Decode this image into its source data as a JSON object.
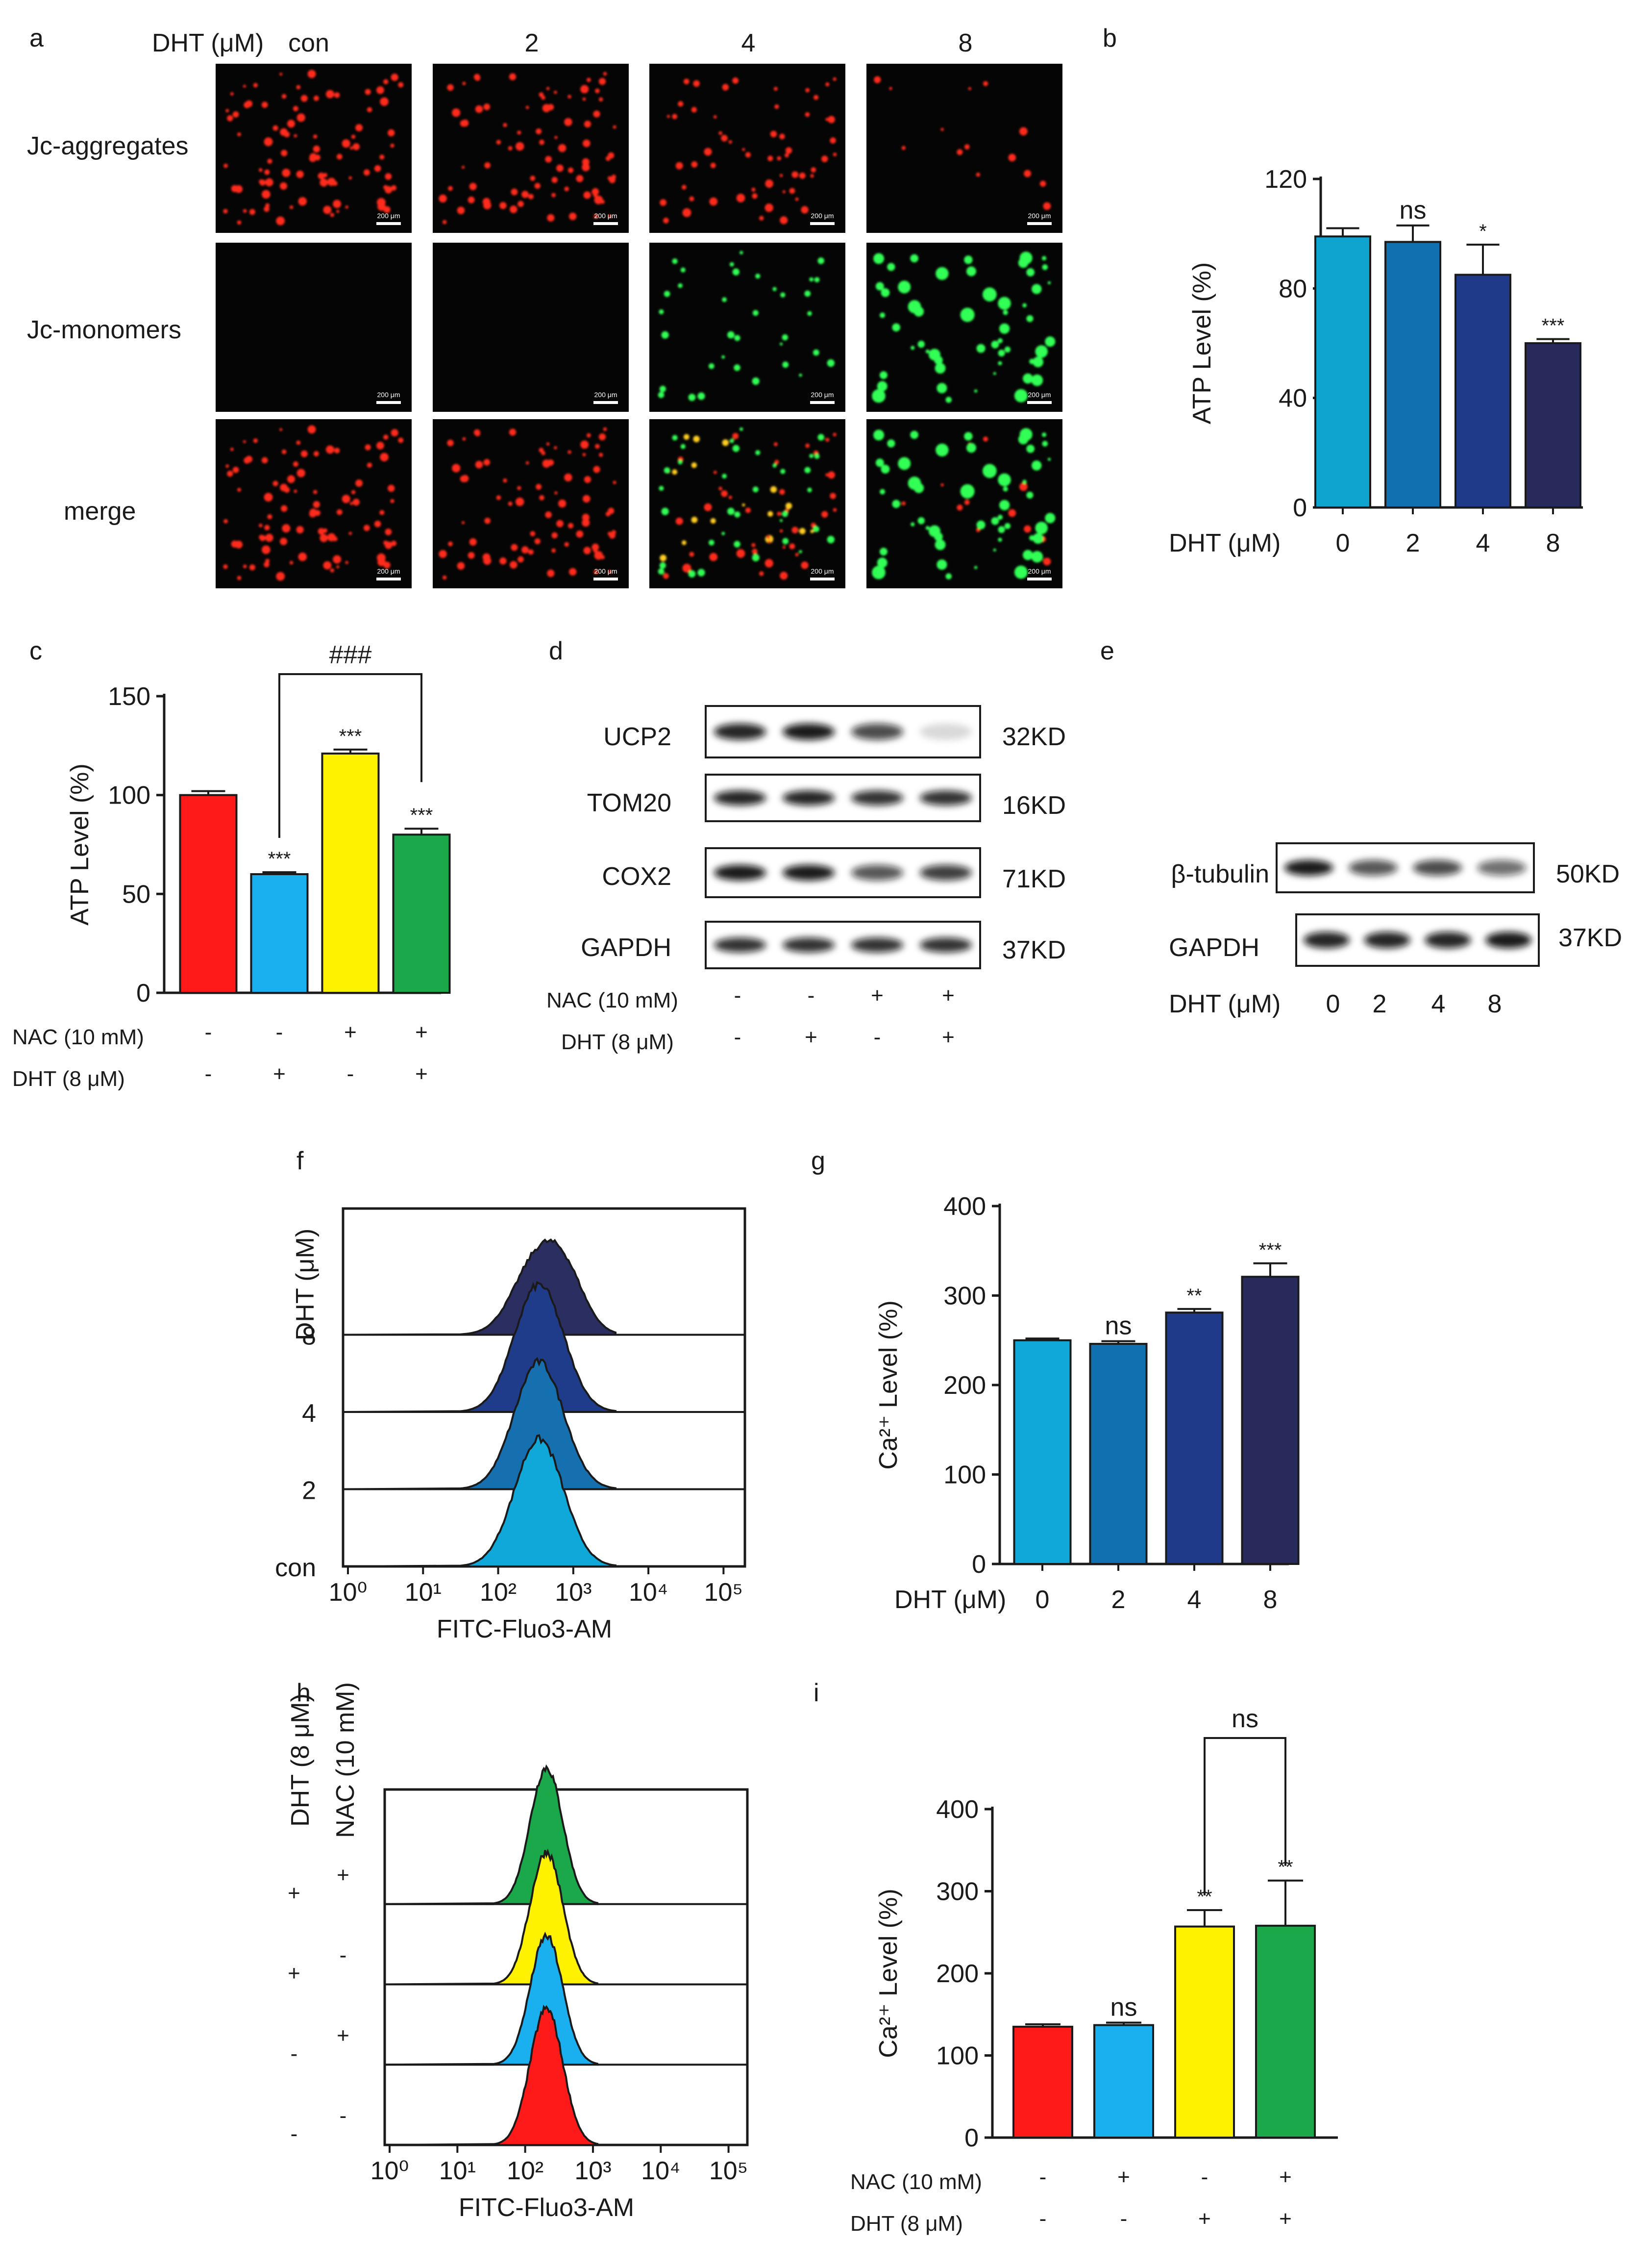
{
  "panel_letters": [
    "a",
    "b",
    "c",
    "d",
    "e",
    "f",
    "g",
    "h",
    "i"
  ],
  "panel_a": {
    "header_label": "DHT (μM)",
    "columns": [
      "con",
      "2",
      "4",
      "8"
    ],
    "rows": [
      "Jc-aggregates",
      "Jc-monomers",
      "merge"
    ],
    "scale_bar": "200 μm",
    "colors": {
      "aggregates": "#ff2a1a",
      "monomers": "#33ff55",
      "merge_overlap": "#ffcc22"
    }
  },
  "panel_d": {
    "bands": [
      {
        "name": "UCP2",
        "size": "32KD"
      },
      {
        "name": "TOM20",
        "size": "16KD"
      },
      {
        "name": "COX2",
        "size": "71KD"
      },
      {
        "name": "GAPDH",
        "size": "37KD"
      }
    ],
    "row_labels": [
      "NAC (10 mM)",
      "DHT  (8 μM)"
    ],
    "nac": [
      "-",
      "-",
      "+",
      "+"
    ],
    "dht": [
      "-",
      "+",
      "-",
      "+"
    ]
  },
  "panel_e": {
    "bands": [
      {
        "name": "β-tubulin",
        "size": "50KD"
      },
      {
        "name": "GAPDH",
        "size": "37KD"
      }
    ],
    "row_label": "DHT (μM)",
    "doses": [
      "0",
      "2",
      "4",
      "8"
    ]
  },
  "chart_data": [
    {
      "panel": "b",
      "type": "bar",
      "categories": [
        "0",
        "2",
        "4",
        "8"
      ],
      "values": [
        99,
        97,
        85,
        60
      ],
      "errors": [
        3,
        6,
        11,
        1.5
      ],
      "significance": [
        "",
        "ns",
        "*",
        "***"
      ],
      "ylabel": "ATP Level (%)",
      "xlabel": "DHT (μM)",
      "ylim": [
        0,
        120
      ],
      "yticks": [
        0,
        40,
        80,
        120
      ],
      "colors": [
        "#0fa3cf",
        "#1170b0",
        "#203a8a",
        "#272a5a"
      ]
    },
    {
      "panel": "c",
      "type": "bar",
      "categories": [
        "1",
        "2",
        "3",
        "4"
      ],
      "values": [
        100,
        60,
        121,
        80
      ],
      "errors": [
        2,
        1,
        2,
        3
      ],
      "significance": [
        "",
        "***",
        "***",
        "***"
      ],
      "bracket": {
        "from": 1,
        "to": 3,
        "label": "###"
      },
      "ylabel": "ATP Level (%)",
      "ylim": [
        0,
        150
      ],
      "yticks": [
        0,
        50,
        100,
        150
      ],
      "row_labels": [
        "NAC (10 mM)",
        "DHT  (8 μM)"
      ],
      "nac": [
        "-",
        "-",
        "+",
        "+"
      ],
      "dht": [
        "-",
        "+",
        "-",
        "+"
      ],
      "colors": [
        "#ff1a1a",
        "#1ab0f0",
        "#fff200",
        "#1aa84a"
      ]
    },
    {
      "panel": "f",
      "type": "area",
      "xlabel": "FITC-Fluo3-AM",
      "xscale": "log",
      "xticks": [
        "10⁰",
        "10¹",
        "10²",
        "10³",
        "10⁴",
        "10⁵"
      ],
      "side_label": "DHT  (μM)",
      "traces": [
        {
          "label": "con",
          "color": "#10a8d8"
        },
        {
          "label": "2",
          "color": "#1670b0"
        },
        {
          "label": "4",
          "color": "#1f3c8a"
        },
        {
          "label": "8",
          "color": "#2a2e60"
        }
      ]
    },
    {
      "panel": "g",
      "type": "bar",
      "categories": [
        "0",
        "2",
        "4",
        "8"
      ],
      "values": [
        250,
        246,
        281,
        321
      ],
      "errors": [
        2,
        3,
        4,
        15
      ],
      "significance": [
        "",
        "ns",
        "**",
        "***"
      ],
      "ylabel": "Ca²⁺ Level (%)",
      "xlabel": "DHT (μM)",
      "ylim": [
        0,
        400
      ],
      "yticks": [
        0,
        100,
        200,
        300,
        400
      ],
      "colors": [
        "#10a8d8",
        "#1170b0",
        "#203a8a",
        "#272a5a"
      ]
    },
    {
      "panel": "h",
      "type": "area",
      "xlabel": "FITC-Fluo3-AM",
      "xscale": "log",
      "xticks": [
        "10⁰",
        "10¹",
        "10²",
        "10³",
        "10⁴",
        "10⁵"
      ],
      "side_labels": [
        "DHT  (8 μM)",
        "NAC (10 mM)"
      ],
      "traces": [
        {
          "dht": "-",
          "nac": "-",
          "color": "#ff1a1a"
        },
        {
          "dht": "-",
          "nac": "+",
          "color": "#1ab0f0"
        },
        {
          "dht": "+",
          "nac": "-",
          "color": "#fff200"
        },
        {
          "dht": "+",
          "nac": "+",
          "color": "#1aa84a"
        }
      ]
    },
    {
      "panel": "i",
      "type": "bar",
      "categories": [
        "1",
        "2",
        "3",
        "4"
      ],
      "values": [
        135,
        137,
        257,
        258
      ],
      "errors": [
        3,
        3,
        20,
        55
      ],
      "significance": [
        "",
        "ns",
        "**",
        "**"
      ],
      "bracket": {
        "from": 2,
        "to": 3,
        "label": "ns"
      },
      "ylabel": "Ca²⁺ Level (%)",
      "ylim": [
        0,
        400
      ],
      "yticks": [
        0,
        100,
        200,
        300,
        400
      ],
      "row_labels": [
        "NAC (10 mM)",
        "DHT  (8 μM)"
      ],
      "nac": [
        "-",
        "+",
        "-",
        "+"
      ],
      "dht": [
        "-",
        "-",
        "+",
        "+"
      ],
      "colors": [
        "#ff1a1a",
        "#1ab0f0",
        "#fff200",
        "#1aa84a"
      ]
    }
  ]
}
